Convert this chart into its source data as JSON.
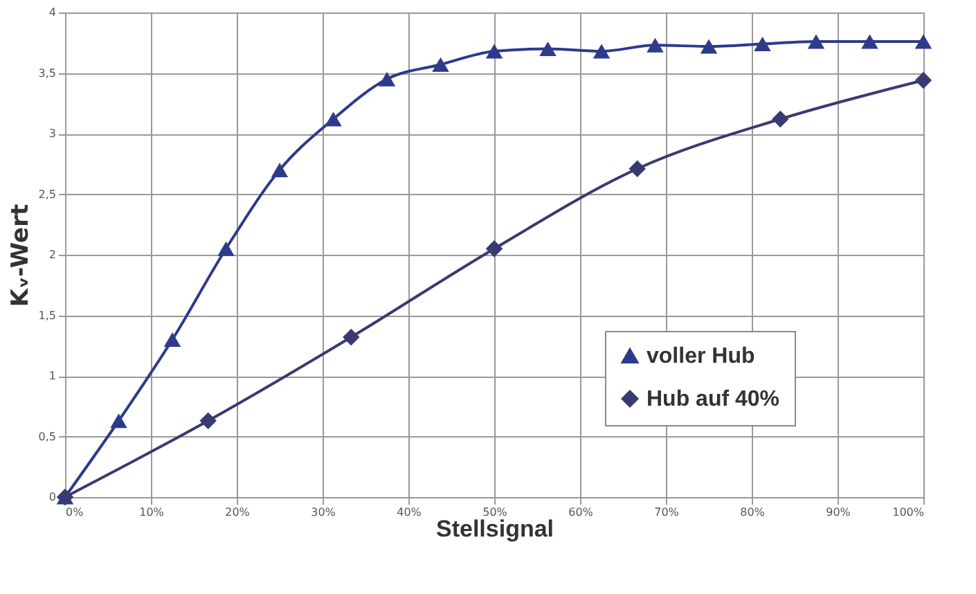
{
  "chart_data": {
    "type": "line",
    "xlabel": "Stellsignal",
    "ylabel": "Kᵥ-Wert",
    "xlim": [
      0,
      100
    ],
    "ylim": [
      0,
      4
    ],
    "xticks": [
      {
        "value": 0,
        "label": "0%"
      },
      {
        "value": 10,
        "label": "10%"
      },
      {
        "value": 20,
        "label": "20%"
      },
      {
        "value": 30,
        "label": "30%"
      },
      {
        "value": 40,
        "label": "40%"
      },
      {
        "value": 50,
        "label": "50%"
      },
      {
        "value": 60,
        "label": "60%"
      },
      {
        "value": 70,
        "label": "70%"
      },
      {
        "value": 80,
        "label": "80%"
      },
      {
        "value": 90,
        "label": "90%"
      },
      {
        "value": 100,
        "label": "100%"
      }
    ],
    "yticks": [
      0,
      {
        "value": 0.5,
        "label": "0,5"
      },
      1,
      {
        "value": 1.5,
        "label": "1,5"
      },
      2,
      {
        "value": 2.5,
        "label": "2,5"
      },
      3,
      {
        "value": 3.5,
        "label": "3,5"
      },
      4
    ],
    "grid": true,
    "legend": "bottom right",
    "series": [
      {
        "name": "voller Hub",
        "color": "#2e3a8c",
        "marker": "triangle",
        "x": [
          0,
          6.25,
          12.5,
          18.75,
          25,
          31.25,
          37.5,
          43.75,
          50,
          56.25,
          62.5,
          68.75,
          75,
          81.25,
          87.5,
          93.75,
          100
        ],
        "values": [
          0,
          0.63,
          1.3,
          2.05,
          2.7,
          3.12,
          3.45,
          3.57,
          3.68,
          3.7,
          3.68,
          3.73,
          3.72,
          3.74,
          3.76,
          3.76,
          3.76
        ]
      },
      {
        "name": "Hub auf 40%",
        "color": "#3a3a72",
        "marker": "diamond",
        "x": [
          0,
          16.67,
          33.33,
          50,
          66.67,
          83.33,
          100
        ],
        "values": [
          0,
          0.63,
          1.32,
          2.05,
          2.71,
          3.12,
          3.44
        ]
      }
    ]
  }
}
